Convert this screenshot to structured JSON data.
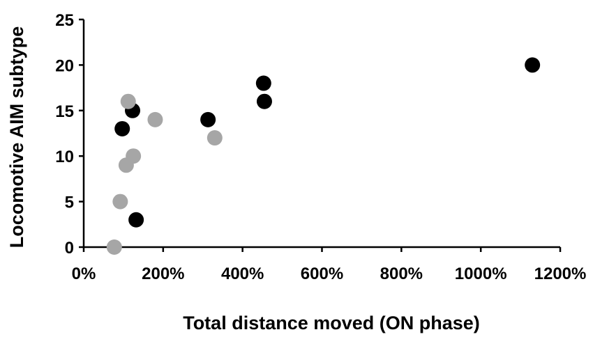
{
  "chart_data": {
    "type": "scatter",
    "title": "",
    "xlabel": "Total distance moved (ON phase)",
    "ylabel": "Locomotive AIM subtype",
    "xlim": [
      0,
      1200
    ],
    "ylim": [
      0,
      25
    ],
    "x_unit": "%",
    "x_ticks": [
      "0%",
      "200%",
      "400%",
      "600%",
      "800%",
      "1000%",
      "1200%"
    ],
    "y_ticks": [
      "0",
      "5",
      "10",
      "15",
      "20",
      "25"
    ],
    "x_tick_values": [
      0,
      200,
      400,
      600,
      800,
      1000,
      1200
    ],
    "y_tick_values": [
      0,
      5,
      10,
      15,
      20,
      25
    ],
    "grid": false,
    "series": [
      {
        "color": "#000000",
        "points": [
          {
            "x": 97,
            "y": 13
          },
          {
            "x": 123,
            "y": 15
          },
          {
            "x": 132,
            "y": 3
          },
          {
            "x": 313,
            "y": 14
          },
          {
            "x": 453,
            "y": 18
          },
          {
            "x": 455,
            "y": 16
          },
          {
            "x": 1130,
            "y": 20
          }
        ]
      },
      {
        "color": "#a6a6a6",
        "points": [
          {
            "x": 77,
            "y": 0
          },
          {
            "x": 92,
            "y": 5
          },
          {
            "x": 107,
            "y": 9
          },
          {
            "x": 112,
            "y": 16
          },
          {
            "x": 125,
            "y": 10
          },
          {
            "x": 180,
            "y": 14
          },
          {
            "x": 330,
            "y": 12
          }
        ]
      }
    ]
  }
}
